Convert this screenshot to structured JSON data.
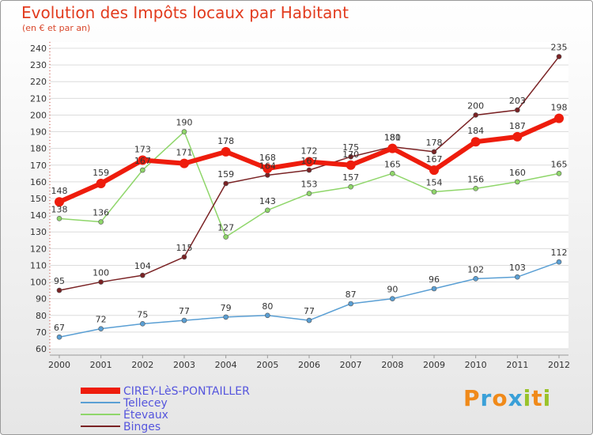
{
  "header": {
    "title": "Evolution des Impôts locaux par Habitant",
    "subtitle": "(en € et par an)"
  },
  "brand": {
    "letters": [
      "P",
      "r",
      "o",
      "x",
      "i",
      "t",
      "i"
    ],
    "colors": [
      "#f08a1a",
      "#3aa0d8",
      "#f08a1a",
      "#3aa0d8",
      "#9ac32a",
      "#f08a1a",
      "#9ac32a"
    ]
  },
  "chart_data": {
    "type": "line",
    "x": [
      "2000",
      "2001",
      "2002",
      "2003",
      "2004",
      "2005",
      "2006",
      "2007",
      "2008",
      "2009",
      "2010",
      "2011",
      "2012"
    ],
    "ylim": [
      60,
      240
    ],
    "yticks": [
      60,
      70,
      80,
      90,
      100,
      110,
      120,
      130,
      140,
      150,
      160,
      170,
      180,
      190,
      200,
      210,
      220,
      230,
      240
    ],
    "grid": "horizontal",
    "legend_position": "bottom-left",
    "series": [
      {
        "name": "CIREY-LèS-PONTAILLER",
        "color": "#ee1c0c",
        "values": [
          148,
          159,
          173,
          171,
          178,
          168,
          172,
          170,
          180,
          167,
          184,
          187,
          198
        ]
      },
      {
        "name": "Tellecey",
        "color": "#5a9fd4",
        "values": [
          67,
          72,
          75,
          77,
          79,
          80,
          77,
          87,
          90,
          96,
          102,
          103,
          112
        ]
      },
      {
        "name": "Étevaux",
        "color": "#8fd66a",
        "values": [
          138,
          136,
          167,
          190,
          127,
          143,
          153,
          157,
          165,
          154,
          156,
          160,
          165
        ]
      },
      {
        "name": "Binges",
        "color": "#7a2224",
        "values": [
          95,
          100,
          104,
          115,
          159,
          164,
          167,
          175,
          181,
          178,
          200,
          203,
          235
        ]
      }
    ]
  }
}
